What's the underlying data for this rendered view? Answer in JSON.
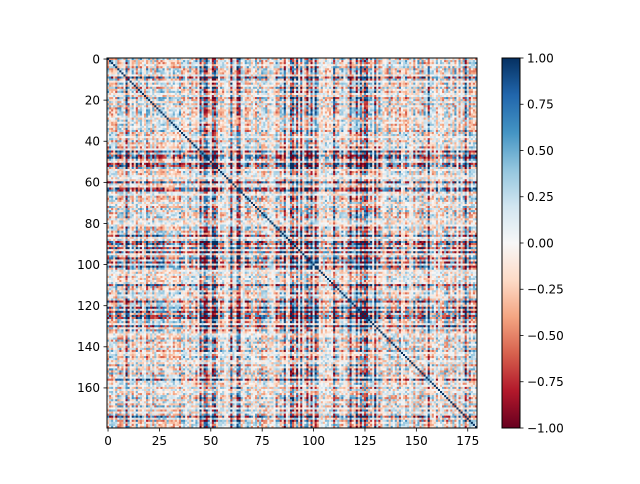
{
  "chart_data": {
    "type": "heatmap",
    "title": "",
    "xlabel": "",
    "ylabel": "",
    "colormap": "RdBu",
    "colormap_anchor_colors": [
      "#67001f",
      "#b2182b",
      "#d6604d",
      "#f4a582",
      "#fddbc7",
      "#f7f7f7",
      "#d1e5f0",
      "#92c5de",
      "#4393c3",
      "#2166ac",
      "#053061"
    ],
    "matrix_size": [
      180,
      180
    ],
    "symmetric": true,
    "value_range": [
      -1.0,
      1.0
    ],
    "x_range": [
      0,
      179
    ],
    "y_range": [
      0,
      179
    ],
    "y_axis_inverted": true,
    "x_ticks": [
      0,
      25,
      50,
      75,
      100,
      125,
      150,
      175
    ],
    "y_ticks": [
      0,
      20,
      40,
      60,
      80,
      100,
      120,
      140,
      160
    ],
    "colorbar": {
      "ticks": [
        -1.0,
        -0.75,
        -0.5,
        -0.25,
        0.0,
        0.25,
        0.5,
        0.75,
        1.0
      ],
      "tick_labels": [
        "−1.00",
        "−0.75",
        "−0.50",
        "−0.25",
        "0.00",
        "0.25",
        "0.50",
        "0.75",
        "1.00"
      ]
    },
    "strong_positive_bands": [
      47,
      48,
      52,
      63,
      64,
      89,
      92,
      97,
      126
    ],
    "strong_negative_bands": [
      9,
      45,
      51,
      60,
      86,
      90,
      94,
      99,
      101,
      110,
      118,
      121,
      123,
      125,
      130,
      156,
      174
    ],
    "grid": false
  }
}
